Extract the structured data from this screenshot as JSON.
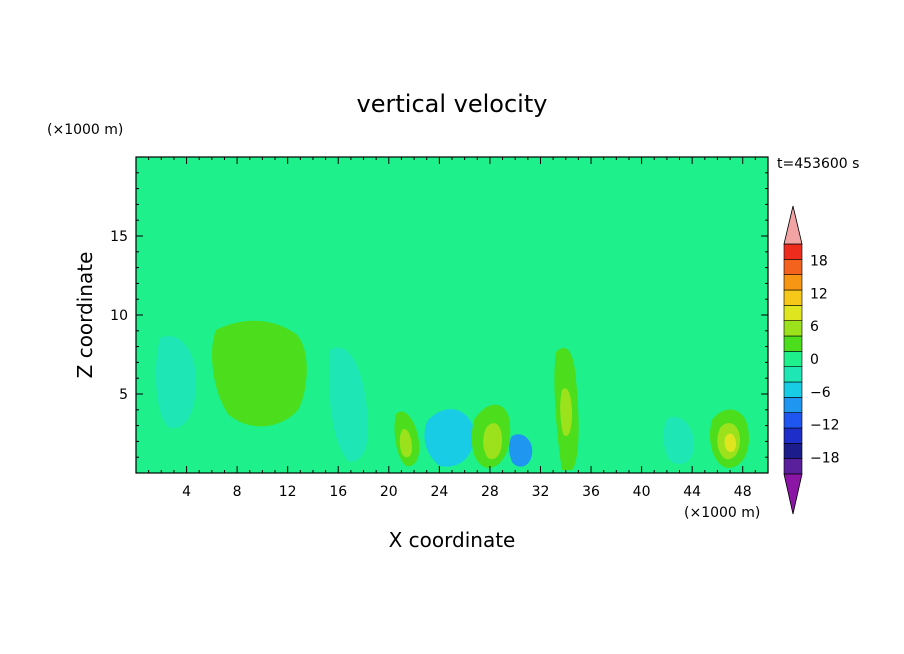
{
  "chart_data": {
    "type": "heatmap",
    "title": "vertical velocity",
    "xlabel": "X coordinate",
    "ylabel": "Z coordinate",
    "x_unit": "(×1000 m)",
    "y_unit": "(×1000 m)",
    "time_label": "t=453600 s",
    "xlim": [
      0,
      50
    ],
    "ylim": [
      0,
      20
    ],
    "x_ticks": [
      4,
      8,
      12,
      16,
      20,
      24,
      28,
      32,
      36,
      40,
      44,
      48
    ],
    "y_ticks": [
      5,
      10,
      15
    ],
    "colorbar": {
      "ticks": [
        18,
        12,
        6,
        0,
        -6,
        -12,
        -18
      ],
      "tick_labels": [
        "18",
        "12",
        "6",
        "0",
        "−6",
        "−12",
        "−18"
      ],
      "levels": [
        -21,
        -18,
        -15,
        -12,
        -9,
        -6,
        -3,
        0,
        3,
        6,
        9,
        12,
        15,
        18,
        21
      ],
      "colors": [
        "#5a1f9a",
        "#1c1c8c",
        "#1e2ec8",
        "#1f56f0",
        "#1f96f0",
        "#19cce6",
        "#1ee6b4",
        "#1ef08c",
        "#4cdd1c",
        "#9be21c",
        "#dfe61f",
        "#f5c81a",
        "#f79612",
        "#f4631e",
        "#ee2c1e"
      ],
      "over_color": "#f2a3a3",
      "under_color": "#8b16a5"
    },
    "background_value": 0.5,
    "features": [
      {
        "name": "upper-plume-left",
        "x": 10,
        "z": 11.5,
        "value": 1.5
      },
      {
        "name": "upper-plume-right",
        "x": 39,
        "z": 13.5,
        "value": 1.5
      },
      {
        "name": "updraft-core-left",
        "x": 10,
        "z": 7,
        "value": 3.5
      },
      {
        "name": "updraft-core-22",
        "x": 22,
        "z": 2,
        "value": 5
      },
      {
        "name": "updraft-core-28",
        "x": 28,
        "z": 2.5,
        "value": 6
      },
      {
        "name": "updraft-core-35",
        "x": 34.5,
        "z": 4,
        "value": 4
      },
      {
        "name": "updraft-core-46",
        "x": 46.5,
        "z": 2.2,
        "value": 7
      },
      {
        "name": "downdraft-4",
        "x": 3.5,
        "z": 6,
        "value": -3.5
      },
      {
        "name": "downdraft-17",
        "x": 17.5,
        "z": 4,
        "value": -3.5
      },
      {
        "name": "downdraft-25",
        "x": 25,
        "z": 2,
        "value": -4
      },
      {
        "name": "downdraft-30",
        "x": 30.5,
        "z": 1.5,
        "value": -8
      }
    ]
  }
}
